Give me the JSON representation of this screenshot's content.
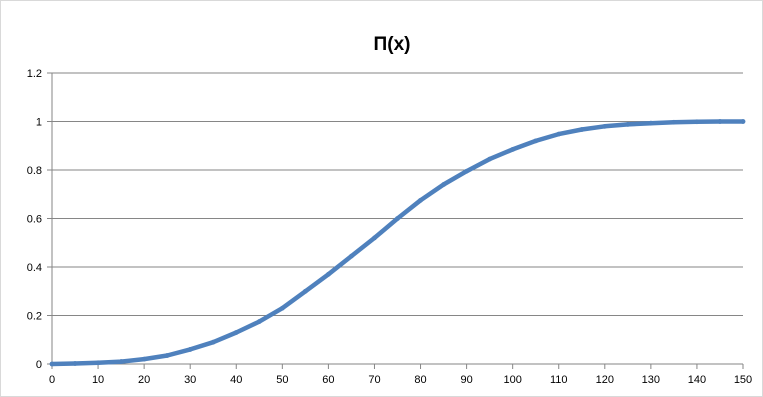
{
  "chart_data": {
    "type": "line",
    "title": "Π(x)",
    "xlabel": "",
    "ylabel": "",
    "xlim": [
      0,
      150
    ],
    "ylim": [
      0,
      1.2
    ],
    "x_ticks": [
      0,
      10,
      20,
      30,
      40,
      50,
      60,
      70,
      80,
      90,
      100,
      110,
      120,
      130,
      140,
      150
    ],
    "y_ticks": [
      0,
      0.2,
      0.4,
      0.6,
      0.8,
      1,
      1.2
    ],
    "grid": "horizontal",
    "legend": "none",
    "series": [
      {
        "color": "#4f81bd",
        "x": [
          0,
          5,
          10,
          15,
          20,
          25,
          30,
          35,
          40,
          45,
          50,
          55,
          60,
          65,
          70,
          75,
          80,
          85,
          90,
          95,
          100,
          105,
          110,
          115,
          120,
          125,
          130,
          135,
          140,
          145,
          150
        ],
        "y": [
          0,
          0.002,
          0.005,
          0.01,
          0.02,
          0.035,
          0.06,
          0.09,
          0.13,
          0.175,
          0.23,
          0.3,
          0.37,
          0.445,
          0.52,
          0.6,
          0.675,
          0.74,
          0.795,
          0.845,
          0.885,
          0.92,
          0.948,
          0.967,
          0.98,
          0.988,
          0.993,
          0.997,
          0.999,
          1.0,
          1.0
        ]
      }
    ]
  }
}
